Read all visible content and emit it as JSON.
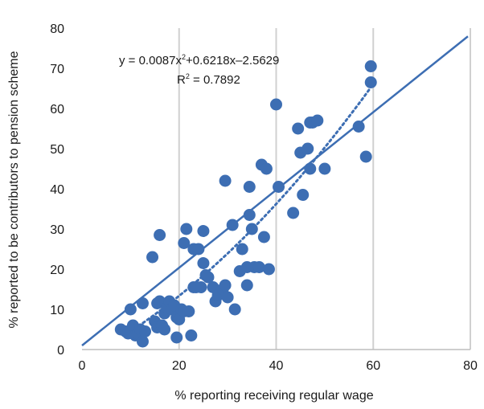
{
  "chart_data": {
    "type": "scatter",
    "title": "",
    "xlabel": "% reporting receiving regular wage",
    "ylabel": "% reported to be contributors to pension scheme",
    "xlim": [
      0,
      80
    ],
    "ylim": [
      0,
      80
    ],
    "x_ticks": [
      "0",
      "20",
      "40",
      "60",
      "80"
    ],
    "y_ticks": [
      "0",
      "10",
      "20",
      "30",
      "40",
      "50",
      "60",
      "70",
      "80"
    ],
    "vertical_grid": true,
    "horizontal_grid": false,
    "equation_line1": "y = 0.0087x",
    "equation_sup": "2",
    "equation_rest": "+0.6218x–2.5629",
    "r2_main": "R",
    "r2_sup": "2",
    "r2_rest": " = 0.7892",
    "colors": {
      "points": "#3d6eb3",
      "linear_fit": "#3d6eb3",
      "poly_fit": "#3d6eb3",
      "grid": "#d0d0d0",
      "axis": "#bdbdbd"
    },
    "linear_fit": {
      "slope": 0.968,
      "intercept": 1.0,
      "x_range": [
        0,
        79.5
      ]
    },
    "poly_fit": {
      "a": 0.0087,
      "b": 0.6218,
      "c": -2.5629,
      "x_range": [
        9,
        59.5
      ]
    },
    "points": [
      [
        8,
        5
      ],
      [
        9,
        4.5
      ],
      [
        9.5,
        4
      ],
      [
        10,
        10
      ],
      [
        10.5,
        6
      ],
      [
        11,
        3.5
      ],
      [
        11.5,
        4
      ],
      [
        12,
        5
      ],
      [
        12.5,
        11.5
      ],
      [
        12.5,
        2
      ],
      [
        13,
        4.5
      ],
      [
        14.5,
        23
      ],
      [
        15,
        7
      ],
      [
        15.5,
        5.5
      ],
      [
        15.5,
        11.5
      ],
      [
        16,
        12
      ],
      [
        16,
        28.5
      ],
      [
        16.5,
        6
      ],
      [
        17,
        9
      ],
      [
        17,
        5
      ],
      [
        17.5,
        10.5
      ],
      [
        18,
        12
      ],
      [
        18.5,
        10
      ],
      [
        19,
        11
      ],
      [
        19.5,
        3
      ],
      [
        19.5,
        8
      ],
      [
        20,
        7.5
      ],
      [
        20.5,
        10
      ],
      [
        21,
        26.5
      ],
      [
        21,
        9.5
      ],
      [
        21.5,
        30
      ],
      [
        22,
        9.5
      ],
      [
        22.5,
        3.5
      ],
      [
        23,
        15.5
      ],
      [
        23,
        25
      ],
      [
        23.5,
        15.5
      ],
      [
        24,
        25
      ],
      [
        24.5,
        15.5
      ],
      [
        25,
        29.5
      ],
      [
        25,
        21.5
      ],
      [
        25.5,
        18.5
      ],
      [
        26,
        18
      ],
      [
        27,
        15.5
      ],
      [
        27.5,
        12
      ],
      [
        28,
        13.5
      ],
      [
        29,
        15
      ],
      [
        29.5,
        42
      ],
      [
        29.5,
        16
      ],
      [
        30,
        13
      ],
      [
        31,
        31
      ],
      [
        31.5,
        10
      ],
      [
        32.5,
        19.5
      ],
      [
        33,
        25
      ],
      [
        34,
        16
      ],
      [
        34,
        20.5
      ],
      [
        34.5,
        33.5
      ],
      [
        34.5,
        40.5
      ],
      [
        35,
        30
      ],
      [
        35.5,
        20.5
      ],
      [
        36.5,
        20.5
      ],
      [
        37,
        46
      ],
      [
        37.5,
        28
      ],
      [
        38,
        45
      ],
      [
        38.5,
        20
      ],
      [
        40,
        61
      ],
      [
        40.5,
        40.5
      ],
      [
        43.5,
        34
      ],
      [
        44.5,
        55
      ],
      [
        45,
        49
      ],
      [
        45.5,
        38.5
      ],
      [
        46.5,
        50
      ],
      [
        47,
        56.5
      ],
      [
        47,
        45
      ],
      [
        47.5,
        56.5
      ],
      [
        48.5,
        57
      ],
      [
        50,
        45
      ],
      [
        57,
        55.5
      ],
      [
        58.5,
        48
      ],
      [
        59.5,
        70.5
      ],
      [
        59.5,
        66.5
      ]
    ]
  }
}
